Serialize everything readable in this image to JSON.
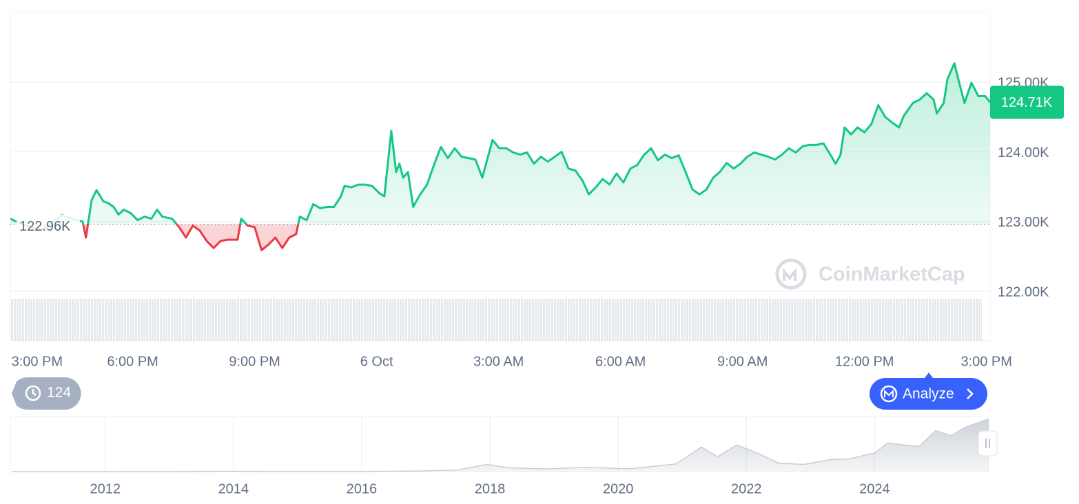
{
  "chart_data": [
    {
      "type": "line",
      "xlim": [
        -0.76,
        23.34
      ],
      "ylim": [
        122,
        126
      ],
      "xticks": [
        {
          "value": -0.75,
          "label": "3:00 PM"
        },
        {
          "value": 2.25,
          "label": "6:00 PM"
        },
        {
          "value": 5.25,
          "label": "9:00 PM"
        },
        {
          "value": 8.25,
          "label": "6 Oct"
        },
        {
          "value": 11.25,
          "label": "3:00 AM"
        },
        {
          "value": 14.25,
          "label": "6:00 AM"
        },
        {
          "value": 17.25,
          "label": "9:00 AM"
        },
        {
          "value": 20.25,
          "label": "12:00 PM"
        },
        {
          "value": 23.25,
          "label": "3:00 PM"
        }
      ],
      "yticks": [
        {
          "value": 122,
          "label": "122.00K"
        },
        {
          "value": 123,
          "label": "123.00K"
        },
        {
          "value": 124,
          "label": "124.00K"
        },
        {
          "value": 125,
          "label": "125.00K"
        }
      ],
      "grid": true,
      "up_color": "#16c784",
      "down_color": "#ea3943",
      "baseline": {
        "value": 122.96,
        "label": "122.96K"
      },
      "current_price": {
        "value": 124.71,
        "label": "124.71K"
      },
      "x": [
        -0.76,
        -0.51,
        -0.25,
        0,
        0.25,
        0.51,
        0.76,
        1.02,
        1.1,
        1.24,
        1.36,
        1.53,
        1.66,
        1.78,
        1.9,
        2.03,
        2.2,
        2.37,
        2.54,
        2.71,
        2.85,
        2.98,
        3.22,
        3.39,
        3.56,
        3.73,
        3.9,
        4.07,
        4.24,
        4.41,
        4.58,
        4.83,
        4.92,
        5.08,
        5.25,
        5.42,
        5.59,
        5.76,
        5.93,
        6.1,
        6.27,
        6.36,
        6.53,
        6.69,
        6.86,
        7.03,
        7.2,
        7.37,
        7.46,
        7.63,
        7.8,
        7.97,
        8.14,
        8.31,
        8.44,
        8.61,
        8.73,
        8.81,
        8.9,
        9.02,
        9.15,
        9.29,
        9.49,
        9.66,
        9.83,
        10.0,
        10.17,
        10.34,
        10.51,
        10.68,
        10.85,
        10.98,
        11.1,
        11.27,
        11.44,
        11.61,
        11.78,
        11.95,
        12.12,
        12.29,
        12.46,
        12.63,
        12.8,
        12.97,
        13.14,
        13.31,
        13.47,
        13.64,
        13.81,
        13.98,
        14.15,
        14.32,
        14.49,
        14.66,
        14.83,
        15.0,
        15.17,
        15.34,
        15.51,
        15.68,
        15.85,
        16.02,
        16.19,
        16.36,
        16.53,
        16.69,
        16.86,
        17.03,
        17.2,
        17.37,
        17.54,
        17.71,
        17.88,
        18.05,
        18.22,
        18.39,
        18.56,
        18.73,
        18.9,
        19.07,
        19.24,
        19.41,
        19.54,
        19.66,
        19.76,
        19.92,
        20.08,
        20.25,
        20.42,
        20.59,
        20.76,
        20.93,
        21.1,
        21.22,
        21.44,
        21.61,
        21.78,
        21.95,
        22.03,
        22.2,
        22.29,
        22.46,
        22.58,
        22.71,
        22.88,
        23.05,
        23.22,
        23.34
      ],
      "values": [
        123.04,
        122.97,
        122.92,
        122.87,
        122.97,
        123.09,
        123.04,
        123.0,
        122.77,
        123.31,
        123.45,
        123.29,
        123.26,
        123.21,
        123.1,
        123.17,
        123.12,
        123.02,
        123.07,
        123.04,
        123.17,
        123.07,
        123.04,
        122.92,
        122.77,
        122.94,
        122.87,
        122.72,
        122.62,
        122.72,
        122.74,
        122.74,
        123.04,
        122.94,
        122.92,
        122.59,
        122.67,
        122.77,
        122.62,
        122.77,
        122.82,
        123.07,
        123.02,
        123.25,
        123.19,
        123.21,
        123.21,
        123.36,
        123.51,
        123.49,
        123.53,
        123.53,
        123.51,
        123.41,
        123.36,
        124.3,
        123.71,
        123.83,
        123.63,
        123.71,
        123.21,
        123.36,
        123.53,
        123.81,
        124.07,
        123.91,
        124.05,
        123.93,
        123.91,
        123.89,
        123.63,
        123.91,
        124.17,
        124.05,
        124.05,
        123.99,
        123.96,
        123.99,
        123.83,
        123.93,
        123.86,
        123.93,
        124.0,
        123.76,
        123.73,
        123.59,
        123.39,
        123.49,
        123.61,
        123.53,
        123.69,
        123.56,
        123.76,
        123.81,
        123.96,
        124.05,
        123.88,
        123.96,
        123.91,
        123.95,
        123.71,
        123.46,
        123.39,
        123.46,
        123.63,
        123.71,
        123.84,
        123.76,
        123.83,
        123.93,
        123.99,
        123.96,
        123.93,
        123.89,
        123.96,
        124.05,
        123.99,
        124.08,
        124.1,
        124.1,
        124.12,
        123.96,
        123.83,
        123.96,
        124.35,
        124.25,
        124.35,
        124.28,
        124.4,
        124.67,
        124.5,
        124.42,
        124.35,
        124.52,
        124.7,
        124.75,
        124.84,
        124.75,
        124.55,
        124.7,
        125.04,
        125.27,
        124.99,
        124.7,
        124.99,
        124.8,
        124.8,
        124.71
      ]
    },
    {
      "type": "area",
      "xlim": [
        2010.52,
        2025.78
      ],
      "ylim": [
        0,
        130
      ],
      "xticks": [
        2012,
        2014,
        2016,
        2018,
        2020,
        2022,
        2024
      ],
      "color": "#c9ced6",
      "x": [
        2010.55,
        2012,
        2013,
        2013.9,
        2014.5,
        2016,
        2016.9,
        2017.5,
        2017.95,
        2018.3,
        2018.9,
        2019.5,
        2019.9,
        2020.2,
        2020.9,
        2021.3,
        2021.55,
        2021.85,
        2022.2,
        2022.5,
        2022.9,
        2023.3,
        2023.6,
        2024.0,
        2024.2,
        2024.5,
        2024.7,
        2024.95,
        2025.2,
        2025.4,
        2025.6,
        2025.78
      ],
      "values": [
        0,
        0.01,
        0.1,
        0.8,
        0.5,
        0.5,
        1.5,
        4,
        17,
        9,
        6.5,
        10,
        8,
        7,
        18,
        58,
        35,
        63,
        42,
        20,
        17,
        28,
        30,
        44,
        68,
        62,
        60,
        97,
        85,
        104,
        115,
        124
      ]
    }
  ],
  "ui": {
    "history_count": "124",
    "analyze": "Analyze",
    "watermark": "CoinMarketCap"
  }
}
